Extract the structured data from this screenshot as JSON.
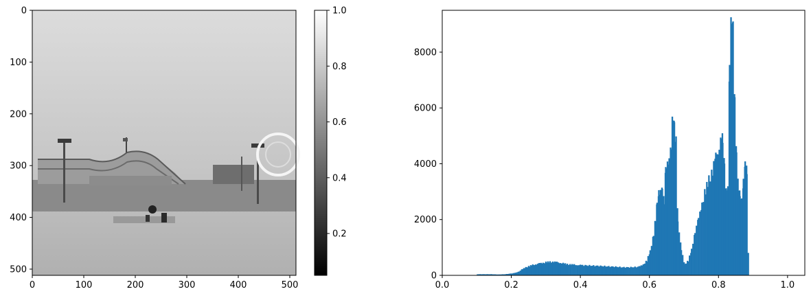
{
  "chart_data": [
    {
      "type": "image",
      "colormap": "gray",
      "xlim": [
        0,
        512
      ],
      "ylim": [
        512,
        0
      ],
      "x_ticks": [
        0,
        100,
        200,
        300,
        400,
        500
      ],
      "y_ticks": [
        0,
        100,
        200,
        300,
        400,
        500
      ],
      "colorbar": {
        "range": [
          0.05,
          1.0
        ],
        "ticks": [
          0.2,
          0.4,
          0.6,
          0.8,
          1.0
        ],
        "tick_labels": [
          "0.2",
          "0.4",
          "0.6",
          "0.8",
          "1.0"
        ]
      }
    },
    {
      "type": "histogram",
      "color": "#1f77b4",
      "xlim": [
        0.0,
        1.05
      ],
      "ylim": [
        0,
        9500
      ],
      "x_ticks": [
        0.0,
        0.2,
        0.4,
        0.6,
        0.8,
        1.0
      ],
      "x_tick_labels": [
        "0.0",
        "0.2",
        "0.4",
        "0.6",
        "0.8",
        "1.0"
      ],
      "y_ticks": [
        0,
        2000,
        4000,
        6000,
        8000
      ],
      "y_tick_labels": [
        "0",
        "2000",
        "4000",
        "6000",
        "8000"
      ],
      "bin_width": 0.004,
      "bins": [
        [
          0.1,
          40
        ],
        [
          0.12,
          40
        ],
        [
          0.14,
          40
        ],
        [
          0.16,
          30
        ],
        [
          0.18,
          40
        ],
        [
          0.2,
          70
        ],
        [
          0.21,
          90
        ],
        [
          0.22,
          140
        ],
        [
          0.23,
          220
        ],
        [
          0.24,
          290
        ],
        [
          0.25,
          330
        ],
        [
          0.26,
          370
        ],
        [
          0.27,
          400
        ],
        [
          0.28,
          430
        ],
        [
          0.29,
          450
        ],
        [
          0.3,
          470
        ],
        [
          0.31,
          480
        ],
        [
          0.32,
          490
        ],
        [
          0.33,
          470
        ],
        [
          0.34,
          450
        ],
        [
          0.35,
          420
        ],
        [
          0.36,
          400
        ],
        [
          0.37,
          390
        ],
        [
          0.38,
          380
        ],
        [
          0.39,
          370
        ],
        [
          0.4,
          365
        ],
        [
          0.42,
          355
        ],
        [
          0.44,
          345
        ],
        [
          0.46,
          335
        ],
        [
          0.48,
          320
        ],
        [
          0.5,
          310
        ],
        [
          0.52,
          290
        ],
        [
          0.54,
          290
        ],
        [
          0.56,
          300
        ],
        [
          0.57,
          320
        ],
        [
          0.58,
          390
        ],
        [
          0.59,
          520
        ],
        [
          0.6,
          850
        ],
        [
          0.61,
          1500
        ],
        [
          0.615,
          2000
        ],
        [
          0.62,
          2500
        ],
        [
          0.625,
          2900
        ],
        [
          0.63,
          3100
        ],
        [
          0.635,
          3300
        ],
        [
          0.64,
          2600
        ],
        [
          0.645,
          3700
        ],
        [
          0.65,
          3900
        ],
        [
          0.655,
          4300
        ],
        [
          0.66,
          4800
        ],
        [
          0.665,
          5600
        ],
        [
          0.67,
          5200
        ],
        [
          0.675,
          4800
        ],
        [
          0.68,
          2000
        ],
        [
          0.69,
          900
        ],
        [
          0.7,
          400
        ],
        [
          0.71,
          520
        ],
        [
          0.72,
          900
        ],
        [
          0.73,
          1600
        ],
        [
          0.74,
          2000
        ],
        [
          0.75,
          2600
        ],
        [
          0.76,
          3000
        ],
        [
          0.77,
          3400
        ],
        [
          0.78,
          3800
        ],
        [
          0.79,
          4200
        ],
        [
          0.8,
          4600
        ],
        [
          0.805,
          5200
        ],
        [
          0.81,
          4800
        ],
        [
          0.815,
          3800
        ],
        [
          0.82,
          3000
        ],
        [
          0.825,
          3300
        ],
        [
          0.83,
          8000
        ],
        [
          0.835,
          9000
        ],
        [
          0.84,
          8600
        ],
        [
          0.845,
          6200
        ],
        [
          0.85,
          4600
        ],
        [
          0.855,
          3200
        ],
        [
          0.86,
          2800
        ],
        [
          0.865,
          2600
        ],
        [
          0.87,
          3400
        ],
        [
          0.875,
          4300
        ],
        [
          0.88,
          3800
        ],
        [
          0.885,
          0
        ]
      ],
      "tail_ranges": [
        [
          0.885,
          1.0
        ]
      ],
      "tail_level": 10
    }
  ]
}
